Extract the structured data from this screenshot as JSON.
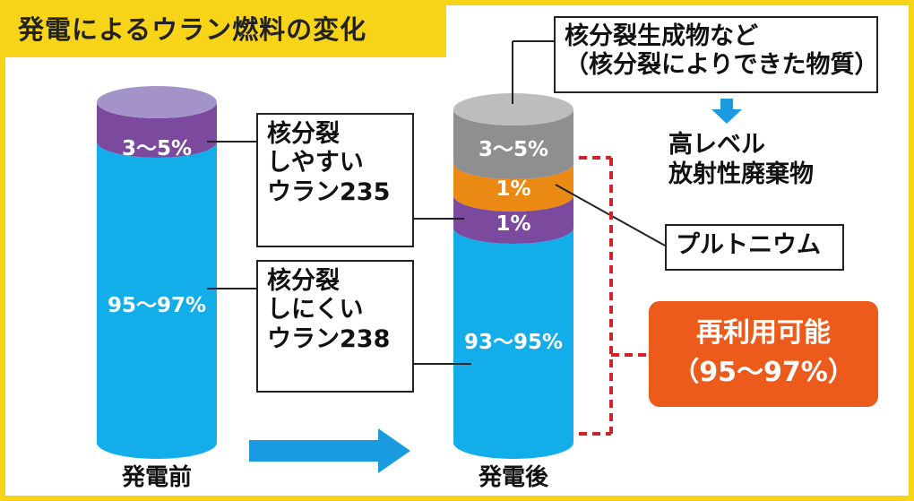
{
  "title": "発電によるウラン燃料の変化",
  "before": {
    "caption": "発電前",
    "segments": [
      {
        "label": "3〜5%",
        "value_range": [
          3,
          5
        ],
        "color": "#7b4a9e"
      },
      {
        "label": "95〜97%",
        "value_range": [
          95,
          97
        ],
        "color": "#13aeea"
      }
    ]
  },
  "after": {
    "caption": "発電後",
    "segments": [
      {
        "label": "3〜5%",
        "value_range": [
          3,
          5
        ],
        "color": "#8f8f8f"
      },
      {
        "label": "1%",
        "value": 1,
        "color": "#ea8a14"
      },
      {
        "label": "1%",
        "value": 1,
        "color": "#7b4a9e"
      },
      {
        "label": "93〜95%",
        "value_range": [
          93,
          95
        ],
        "color": "#13aeea"
      }
    ]
  },
  "labels": {
    "u235": {
      "lines": [
        "核分裂",
        "しやすい",
        "ウラン235"
      ]
    },
    "u238": {
      "lines": [
        "核分裂",
        "しにくい",
        "ウラン238"
      ]
    },
    "fission_products": {
      "lines": [
        "核分裂生成物など",
        "（核分裂によりできた物質）"
      ]
    },
    "high_level_waste": {
      "lines": [
        "高レベル",
        "放射性廃棄物"
      ]
    },
    "plutonium": "プルトニウム",
    "reusable": {
      "lines": [
        "再利用可能",
        "（95〜97%）"
      ]
    }
  },
  "colors": {
    "accent_yellow": "#f7d417",
    "arrow_blue": "#1a9be0",
    "dashed_red": "#d2232a",
    "callout_orange": "#ec5a1c"
  }
}
